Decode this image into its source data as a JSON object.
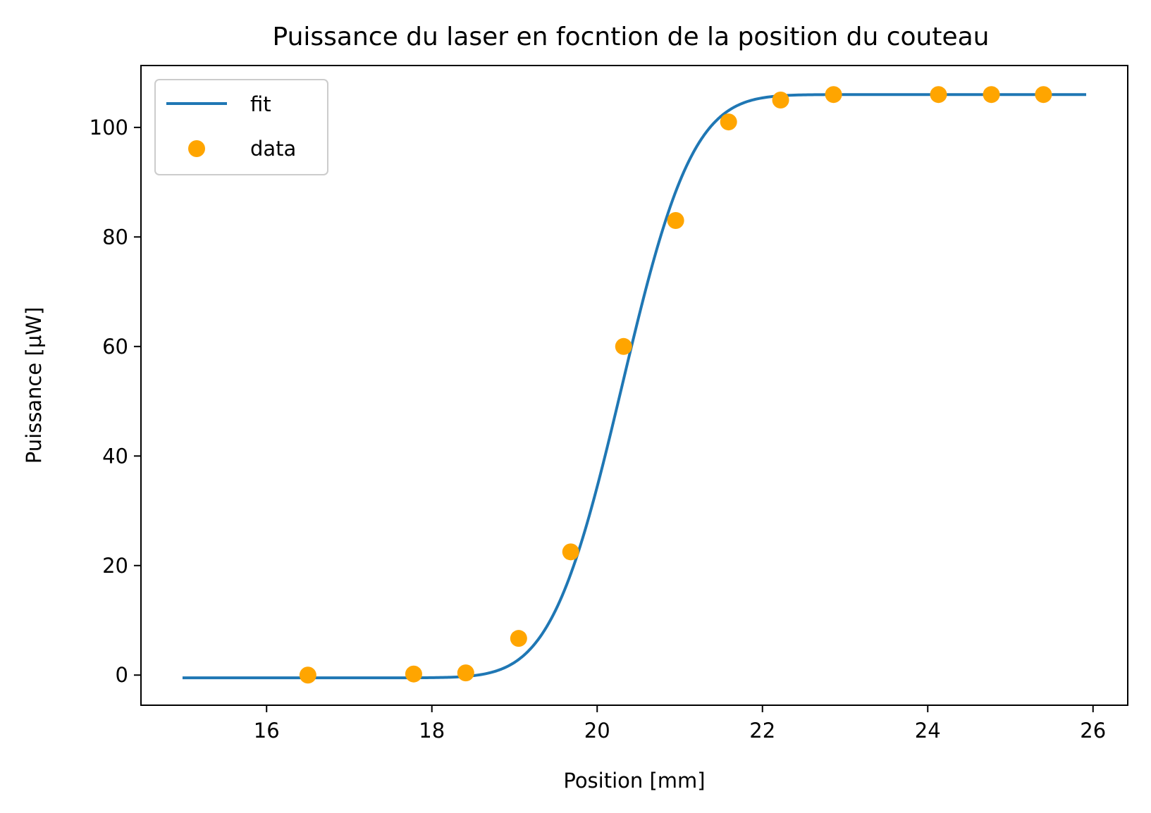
{
  "chart_data": {
    "type": "scatter",
    "title": "Puissance du laser en focntion de la position du couteau",
    "xlabel": "Position [mm]",
    "ylabel": "Puissance [μW]",
    "xlim": [
      14.48,
      26.42
    ],
    "ylim": [
      -5.5,
      111.3
    ],
    "xticks": [
      16,
      18,
      20,
      22,
      24,
      26
    ],
    "yticks": [
      0,
      20,
      40,
      60,
      80,
      100
    ],
    "grid": false,
    "legend": {
      "position": "top-left",
      "entries": [
        "fit",
        "data"
      ]
    },
    "series": [
      {
        "name": "fit",
        "kind": "line",
        "color": "#1f77b4",
        "model": {
          "type": "erf",
          "amplitude": 106.5,
          "offset": -0.5,
          "center": 20.3,
          "width": 0.95
        },
        "x_range": [
          15.0,
          25.9
        ]
      },
      {
        "name": "data",
        "kind": "scatter",
        "color": "#ffa500",
        "x": [
          16.5,
          17.78,
          18.41,
          19.05,
          19.68,
          20.32,
          20.95,
          21.59,
          22.22,
          22.86,
          24.13,
          24.77,
          25.4
        ],
        "y": [
          0.0,
          0.2,
          0.4,
          6.7,
          22.5,
          60.0,
          83.0,
          101.0,
          105.0,
          106.0,
          106.0,
          106.0,
          106.0
        ]
      }
    ]
  }
}
